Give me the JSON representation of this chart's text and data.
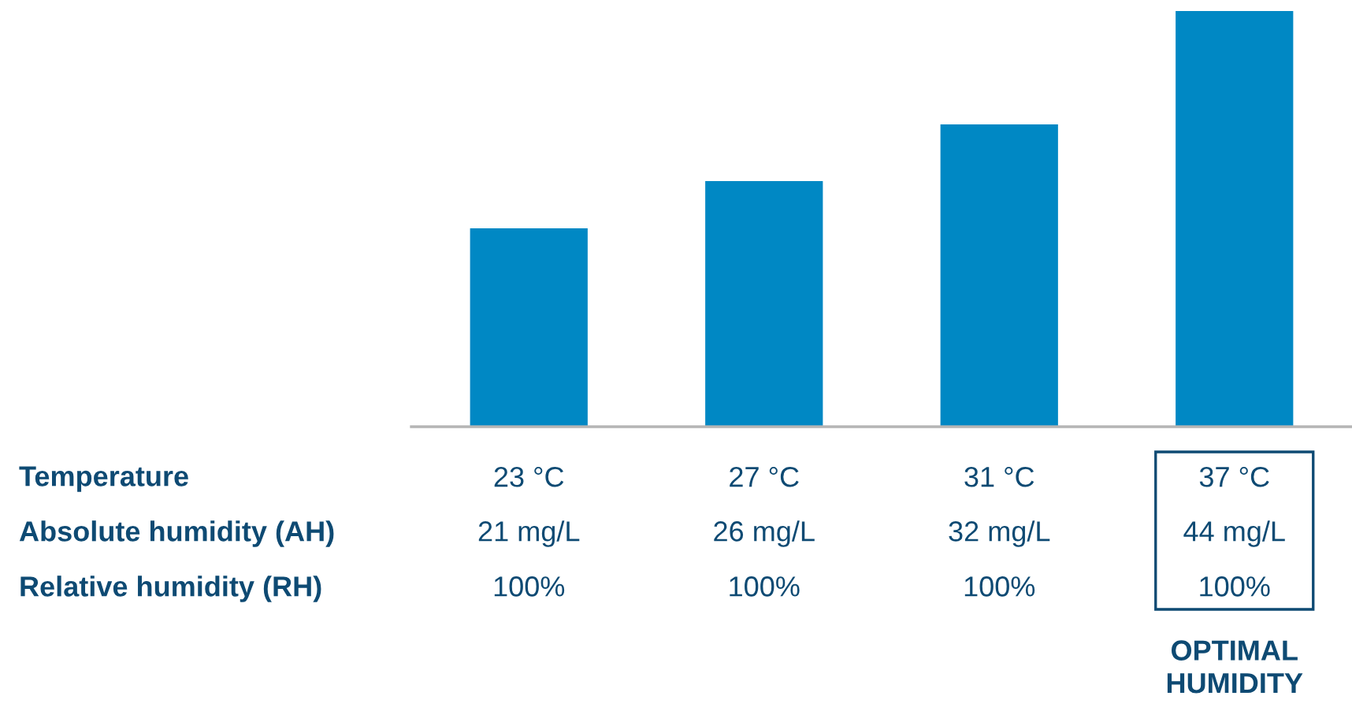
{
  "chart_data": {
    "type": "bar",
    "categories": [
      "23 °C",
      "27 °C",
      "31 °C",
      "37 °C"
    ],
    "values": [
      21,
      26,
      32,
      44
    ],
    "value_labels": [
      "21 mg/L",
      "26 mg/L",
      "32 mg/L",
      "44 mg/L"
    ],
    "color": "#0088c4",
    "annotations": [
      "Temperature",
      "Absolute humidity (AH)",
      "Relative humidity (RH)",
      "100%",
      "100%",
      "100%",
      "100%",
      "OPTIMAL\nHUMIDITY"
    ],
    "grid": false,
    "legend": false
  }
}
